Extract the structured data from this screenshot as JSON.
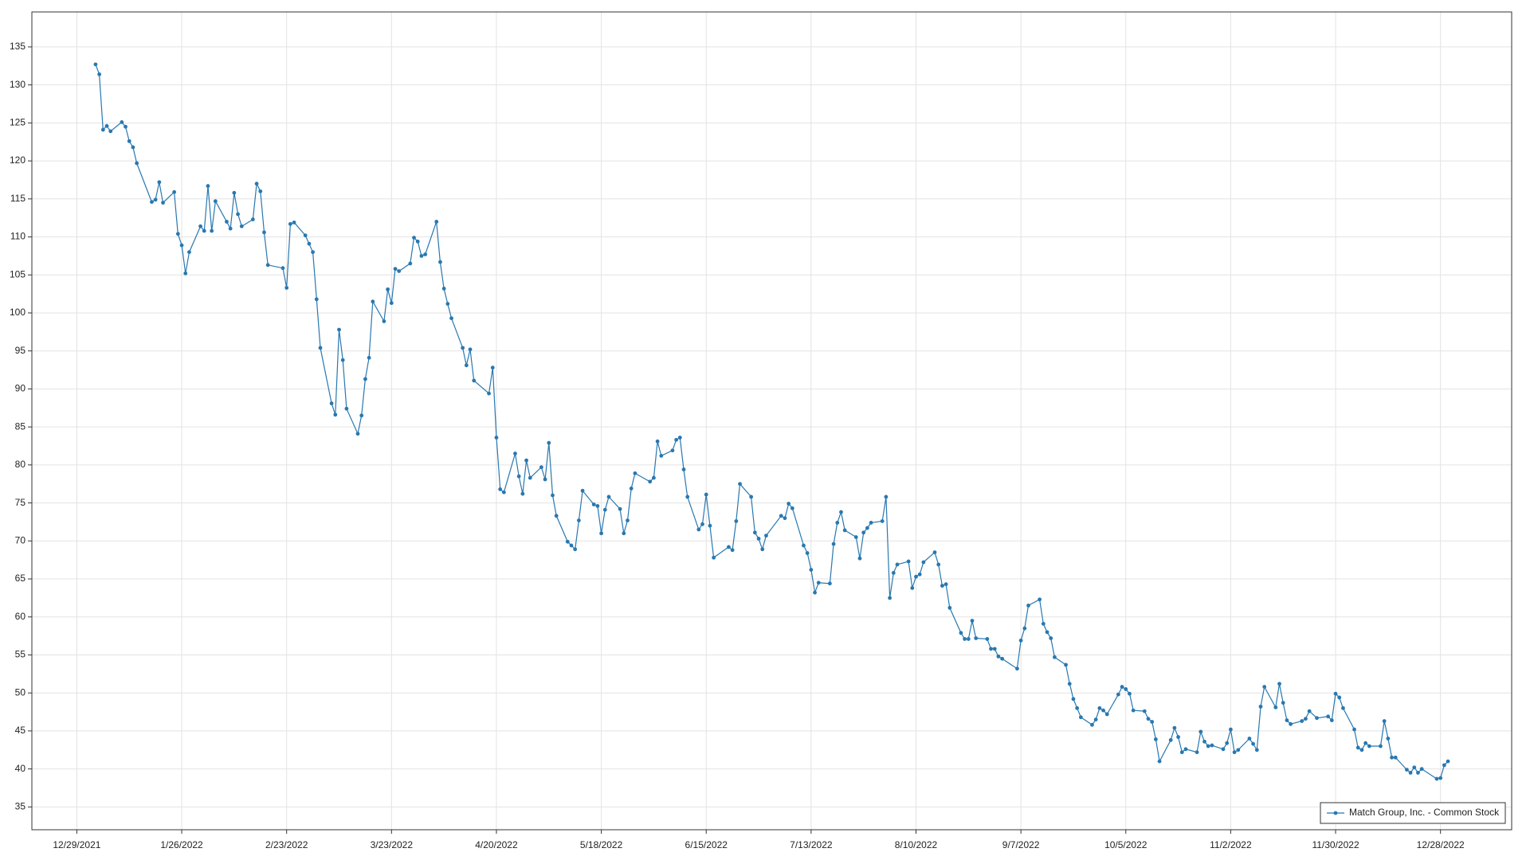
{
  "chart_data": {
    "type": "line",
    "grid": true,
    "legend": "bottom-right",
    "xlim": [
      "12/17/2021",
      "1/16/2023"
    ],
    "xticks": [
      "12/29/2021",
      "1/26/2022",
      "2/23/2022",
      "3/23/2022",
      "4/20/2022",
      "5/18/2022",
      "6/15/2022",
      "7/13/2022",
      "8/10/2022",
      "9/7/2022",
      "10/5/2022",
      "11/2/2022",
      "11/30/2022",
      "12/28/2022"
    ],
    "ylim": [
      32,
      139.6
    ],
    "yticks": [
      35,
      40,
      45,
      50,
      55,
      60,
      65,
      70,
      75,
      80,
      85,
      90,
      95,
      100,
      105,
      110,
      115,
      120,
      125,
      130,
      135
    ],
    "x": [
      "1/3/2022",
      "1/4/2022",
      "1/5/2022",
      "1/6/2022",
      "1/7/2022",
      "1/10/2022",
      "1/11/2022",
      "1/12/2022",
      "1/13/2022",
      "1/14/2022",
      "1/18/2022",
      "1/19/2022",
      "1/20/2022",
      "1/21/2022",
      "1/24/2022",
      "1/25/2022",
      "1/26/2022",
      "1/27/2022",
      "1/28/2022",
      "1/31/2022",
      "2/1/2022",
      "2/2/2022",
      "2/3/2022",
      "2/4/2022",
      "2/7/2022",
      "2/8/2022",
      "2/9/2022",
      "2/10/2022",
      "2/11/2022",
      "2/14/2022",
      "2/15/2022",
      "2/16/2022",
      "2/17/2022",
      "2/18/2022",
      "2/22/2022",
      "2/23/2022",
      "2/24/2022",
      "2/25/2022",
      "2/28/2022",
      "3/1/2022",
      "3/2/2022",
      "3/3/2022",
      "3/4/2022",
      "3/7/2022",
      "3/8/2022",
      "3/9/2022",
      "3/10/2022",
      "3/11/2022",
      "3/14/2022",
      "3/15/2022",
      "3/16/2022",
      "3/17/2022",
      "3/18/2022",
      "3/21/2022",
      "3/22/2022",
      "3/23/2022",
      "3/24/2022",
      "3/25/2022",
      "3/28/2022",
      "3/29/2022",
      "3/30/2022",
      "3/31/2022",
      "4/1/2022",
      "4/4/2022",
      "4/5/2022",
      "4/6/2022",
      "4/7/2022",
      "4/8/2022",
      "4/11/2022",
      "4/12/2022",
      "4/13/2022",
      "4/14/2022",
      "4/18/2022",
      "4/19/2022",
      "4/20/2022",
      "4/21/2022",
      "4/22/2022",
      "4/25/2022",
      "4/26/2022",
      "4/27/2022",
      "4/28/2022",
      "4/29/2022",
      "5/2/2022",
      "5/3/2022",
      "5/4/2022",
      "5/5/2022",
      "5/6/2022",
      "5/9/2022",
      "5/10/2022",
      "5/11/2022",
      "5/12/2022",
      "5/13/2022",
      "5/16/2022",
      "5/17/2022",
      "5/18/2022",
      "5/19/2022",
      "5/20/2022",
      "5/23/2022",
      "5/24/2022",
      "5/25/2022",
      "5/26/2022",
      "5/27/2022",
      "5/31/2022",
      "6/1/2022",
      "6/2/2022",
      "6/3/2022",
      "6/6/2022",
      "6/7/2022",
      "6/8/2022",
      "6/9/2022",
      "6/10/2022",
      "6/13/2022",
      "6/14/2022",
      "6/15/2022",
      "6/16/2022",
      "6/17/2022",
      "6/21/2022",
      "6/22/2022",
      "6/23/2022",
      "6/24/2022",
      "6/27/2022",
      "6/28/2022",
      "6/29/2022",
      "6/30/2022",
      "7/1/2022",
      "7/5/2022",
      "7/6/2022",
      "7/7/2022",
      "7/8/2022",
      "7/11/2022",
      "7/12/2022",
      "7/13/2022",
      "7/14/2022",
      "7/15/2022",
      "7/18/2022",
      "7/19/2022",
      "7/20/2022",
      "7/21/2022",
      "7/22/2022",
      "7/25/2022",
      "7/26/2022",
      "7/27/2022",
      "7/28/2022",
      "7/29/2022",
      "8/1/2022",
      "8/2/2022",
      "8/3/2022",
      "8/4/2022",
      "8/5/2022",
      "8/8/2022",
      "8/9/2022",
      "8/10/2022",
      "8/11/2022",
      "8/12/2022",
      "8/15/2022",
      "8/16/2022",
      "8/17/2022",
      "8/18/2022",
      "8/19/2022",
      "8/22/2022",
      "8/23/2022",
      "8/24/2022",
      "8/25/2022",
      "8/26/2022",
      "8/29/2022",
      "8/30/2022",
      "8/31/2022",
      "9/1/2022",
      "9/2/2022",
      "9/6/2022",
      "9/7/2022",
      "9/8/2022",
      "9/9/2022",
      "9/12/2022",
      "9/13/2022",
      "9/14/2022",
      "9/15/2022",
      "9/16/2022",
      "9/19/2022",
      "9/20/2022",
      "9/21/2022",
      "9/22/2022",
      "9/23/2022",
      "9/26/2022",
      "9/27/2022",
      "9/28/2022",
      "9/29/2022",
      "9/30/2022",
      "10/3/2022",
      "10/4/2022",
      "10/5/2022",
      "10/6/2022",
      "10/7/2022",
      "10/10/2022",
      "10/11/2022",
      "10/12/2022",
      "10/13/2022",
      "10/14/2022",
      "10/17/2022",
      "10/18/2022",
      "10/19/2022",
      "10/20/2022",
      "10/21/2022",
      "10/24/2022",
      "10/25/2022",
      "10/26/2022",
      "10/27/2022",
      "10/28/2022",
      "10/31/2022",
      "11/1/2022",
      "11/2/2022",
      "11/3/2022",
      "11/4/2022",
      "11/7/2022",
      "11/8/2022",
      "11/9/2022",
      "11/10/2022",
      "11/11/2022",
      "11/14/2022",
      "11/15/2022",
      "11/16/2022",
      "11/17/2022",
      "11/18/2022",
      "11/21/2022",
      "11/22/2022",
      "11/23/2022",
      "11/25/2022",
      "11/28/2022",
      "11/29/2022",
      "11/30/2022",
      "12/1/2022",
      "12/2/2022",
      "12/5/2022",
      "12/6/2022",
      "12/7/2022",
      "12/8/2022",
      "12/9/2022",
      "12/12/2022",
      "12/13/2022",
      "12/14/2022",
      "12/15/2022",
      "12/16/2022",
      "12/19/2022",
      "12/20/2022",
      "12/21/2022",
      "12/22/2022",
      "12/23/2022",
      "12/27/2022",
      "12/28/2022",
      "12/29/2022",
      "12/30/2022"
    ],
    "series": [
      {
        "name": "Match Group, Inc. - Common Stock",
        "color": "#2878b0",
        "values": [
          132.7,
          131.4,
          124.1,
          124.6,
          123.9,
          125.1,
          124.5,
          122.6,
          121.8,
          119.7,
          114.6,
          114.9,
          117.2,
          114.5,
          115.9,
          110.4,
          108.9,
          105.2,
          108,
          111.4,
          110.8,
          116.7,
          110.8,
          114.7,
          112,
          111.1,
          115.8,
          113,
          111.4,
          112.3,
          117,
          116,
          110.6,
          106.3,
          105.9,
          103.3,
          111.7,
          111.9,
          110.2,
          109.1,
          108,
          101.8,
          95.4,
          88.1,
          86.6,
          97.8,
          93.8,
          87.4,
          84.1,
          86.5,
          91.3,
          94.1,
          101.5,
          98.9,
          103.1,
          101.3,
          105.8,
          105.5,
          106.5,
          109.9,
          109.4,
          107.5,
          107.7,
          112,
          106.7,
          103.2,
          101.2,
          99.3,
          95.4,
          93.1,
          95.2,
          91.1,
          89.4,
          92.8,
          83.6,
          76.8,
          76.4,
          81.5,
          78.5,
          76.2,
          80.6,
          78.3,
          79.7,
          78.1,
          82.9,
          76,
          73.3,
          69.9,
          69.4,
          68.9,
          72.7,
          76.6,
          74.8,
          74.6,
          71,
          74.1,
          75.8,
          74.2,
          71,
          72.7,
          76.9,
          78.9,
          77.8,
          78.3,
          83.1,
          81.2,
          81.9,
          83.3,
          83.6,
          79.4,
          75.8,
          71.5,
          72.2,
          76.1,
          72,
          67.8,
          69.2,
          68.8,
          72.6,
          77.5,
          75.8,
          71.1,
          70.3,
          68.9,
          70.7,
          73.3,
          73,
          74.9,
          74.3,
          69.4,
          68.4,
          66.2,
          63.2,
          64.5,
          64.4,
          69.6,
          72.4,
          73.8,
          71.4,
          70.5,
          67.7,
          71.1,
          71.7,
          72.4,
          72.6,
          75.8,
          62.5,
          65.8,
          66.9,
          67.3,
          63.8,
          65.3,
          65.6,
          67.2,
          68.5,
          66.9,
          64.1,
          64.3,
          61.2,
          57.9,
          57.1,
          57.1,
          59.5,
          57.2,
          57.1,
          55.8,
          55.8,
          54.8,
          54.5,
          53.2,
          56.9,
          58.5,
          61.5,
          62.3,
          59.1,
          58,
          57.2,
          54.7,
          53.7,
          51.2,
          49.2,
          48,
          46.8,
          45.8,
          46.5,
          48,
          47.7,
          47.2,
          49.8,
          50.8,
          50.5,
          49.9,
          47.7,
          47.6,
          46.6,
          46.2,
          43.9,
          41,
          43.8,
          45.4,
          44.2,
          42.2,
          42.6,
          42.2,
          44.9,
          43.6,
          43,
          43.1,
          42.6,
          43.4,
          45.2,
          42.2,
          42.5,
          44,
          43.3,
          42.5,
          48.2,
          50.8,
          48.1,
          51.2,
          48.7,
          46.4,
          45.9,
          46.3,
          46.6,
          47.6,
          46.7,
          46.9,
          46.4,
          49.9,
          49.4,
          48,
          45.2,
          42.8,
          42.5,
          43.4,
          43,
          43,
          46.3,
          44,
          41.5,
          41.5,
          39.9,
          39.5,
          40.2,
          39.5,
          40,
          38.7,
          38.8,
          40.5,
          41
        ]
      }
    ]
  }
}
